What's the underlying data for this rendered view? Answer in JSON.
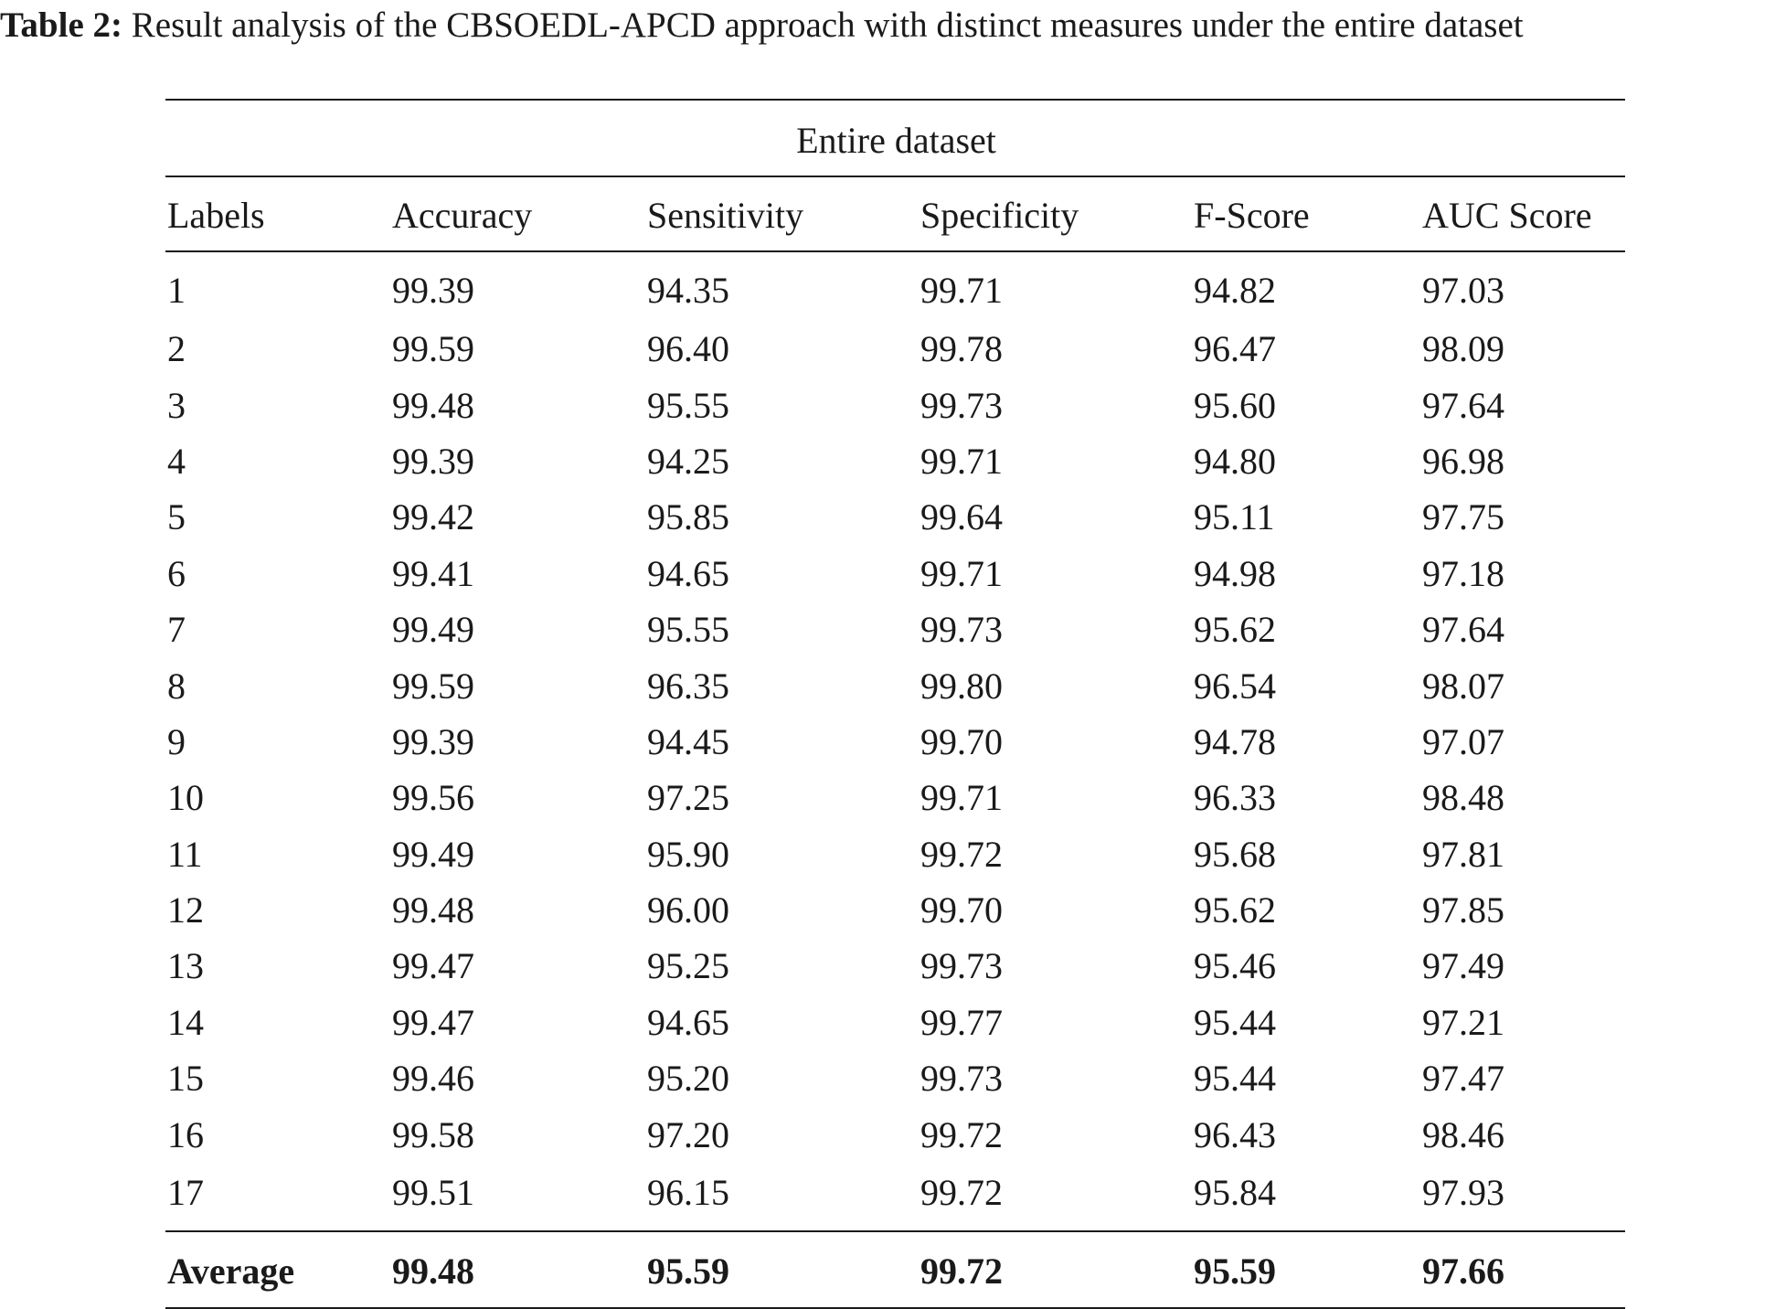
{
  "caption": {
    "label": "Table 2:",
    "text": "Result analysis of the CBSOEDL-APCD approach with distinct measures under the entire dataset"
  },
  "table": {
    "group_header": "Entire dataset",
    "columns": [
      "Labels",
      "Accuracy",
      "Sensitivity",
      "Specificity",
      "F-Score",
      "AUC Score"
    ],
    "rows": [
      [
        "1",
        "99.39",
        "94.35",
        "99.71",
        "94.82",
        "97.03"
      ],
      [
        "2",
        "99.59",
        "96.40",
        "99.78",
        "96.47",
        "98.09"
      ],
      [
        "3",
        "99.48",
        "95.55",
        "99.73",
        "95.60",
        "97.64"
      ],
      [
        "4",
        "99.39",
        "94.25",
        "99.71",
        "94.80",
        "96.98"
      ],
      [
        "5",
        "99.42",
        "95.85",
        "99.64",
        "95.11",
        "97.75"
      ],
      [
        "6",
        "99.41",
        "94.65",
        "99.71",
        "94.98",
        "97.18"
      ],
      [
        "7",
        "99.49",
        "95.55",
        "99.73",
        "95.62",
        "97.64"
      ],
      [
        "8",
        "99.59",
        "96.35",
        "99.80",
        "96.54",
        "98.07"
      ],
      [
        "9",
        "99.39",
        "94.45",
        "99.70",
        "94.78",
        "97.07"
      ],
      [
        "10",
        "99.56",
        "97.25",
        "99.71",
        "96.33",
        "98.48"
      ],
      [
        "11",
        "99.49",
        "95.90",
        "99.72",
        "95.68",
        "97.81"
      ],
      [
        "12",
        "99.48",
        "96.00",
        "99.70",
        "95.62",
        "97.85"
      ],
      [
        "13",
        "99.47",
        "95.25",
        "99.73",
        "95.46",
        "97.49"
      ],
      [
        "14",
        "99.47",
        "94.65",
        "99.77",
        "95.44",
        "97.21"
      ],
      [
        "15",
        "99.46",
        "95.20",
        "99.73",
        "95.44",
        "97.47"
      ],
      [
        "16",
        "99.58",
        "97.20",
        "99.72",
        "96.43",
        "98.46"
      ],
      [
        "17",
        "99.51",
        "96.15",
        "99.72",
        "95.84",
        "97.93"
      ]
    ],
    "average": [
      "Average",
      "99.48",
      "95.59",
      "99.72",
      "95.59",
      "97.66"
    ]
  }
}
